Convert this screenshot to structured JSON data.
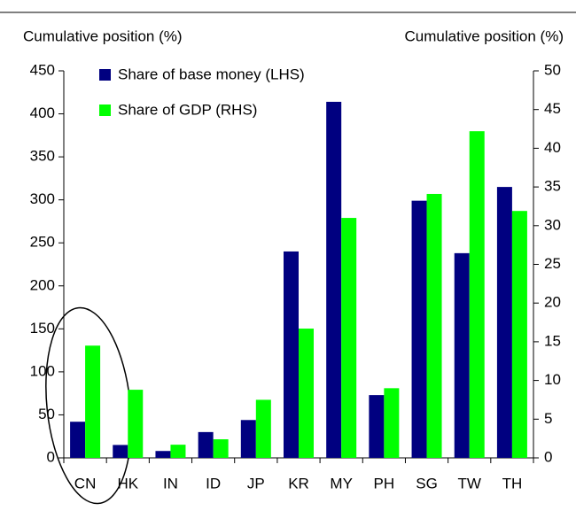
{
  "chart_data": {
    "type": "bar",
    "y_label": "Cumulative position (%)",
    "y2_label": "Cumulative position (%)",
    "categories": [
      "CN",
      "HK",
      "IN",
      "ID",
      "JP",
      "KR",
      "MY",
      "PH",
      "SG",
      "TW",
      "TH"
    ],
    "series": [
      {
        "name": "Share of base money (LHS)",
        "color": "#000080",
        "values": [
          42,
          15,
          8,
          30,
          44,
          240,
          414,
          73,
          299,
          238,
          315
        ]
      },
      {
        "name": "Share of GDP (RHS)",
        "color": "#00ff00",
        "axis": "y2",
        "values": [
          14.5,
          8.8,
          1.7,
          2.4,
          7.5,
          16.7,
          31,
          9,
          34.1,
          42.2,
          31.9
        ]
      }
    ],
    "ylim": [
      0,
      450
    ],
    "yticks": [
      0,
      50,
      100,
      150,
      200,
      250,
      300,
      350,
      400,
      450
    ],
    "y2lim": [
      0,
      50
    ],
    "y2ticks": [
      0,
      5,
      10,
      15,
      20,
      25,
      30,
      35,
      40,
      45,
      50
    ],
    "grid": false
  }
}
